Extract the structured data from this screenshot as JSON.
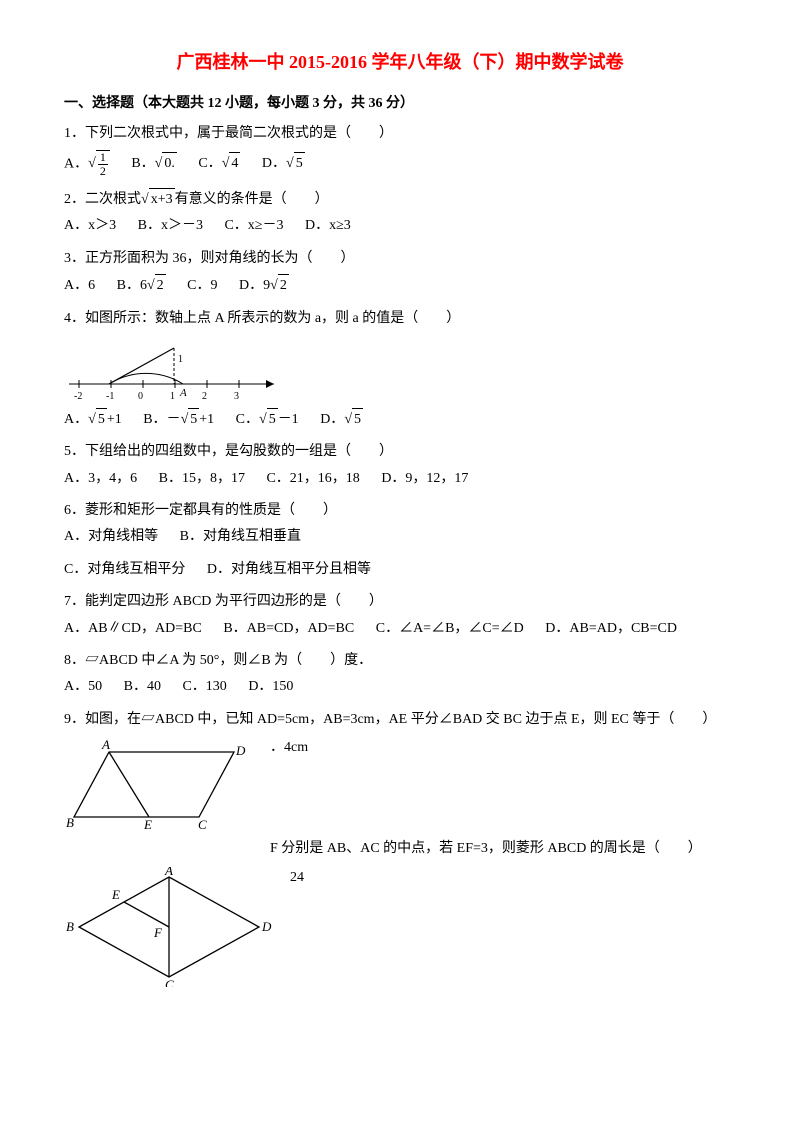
{
  "title": "广西桂林一中 2015-2016 学年八年级（下）期中数学试卷",
  "section1": "一、选择题（本大题共 12 小题，每小题 3 分，共 36 分）",
  "q1": {
    "text": "1．下列二次根式中，属于最简二次根式的是（　　）",
    "optA_prefix": "A．",
    "optA_frac_num": "1",
    "optA_frac_den": "2",
    "optB_prefix": "B．",
    "optB_body": "0.",
    "optC_prefix": "C．",
    "optC_body": "4",
    "optD_prefix": "D．",
    "optD_body": "5"
  },
  "q2": {
    "text_pre": "2．二次根式",
    "sqrt_body": "x+3",
    "text_post": "有意义的条件是（　　）",
    "optA": "A．x＞3",
    "optB": "B．x＞－3",
    "optC": "C．x≥－3",
    "optD": "D．x≥3"
  },
  "q3": {
    "text": "3．正方形面积为 36，则对角线的长为（　　）",
    "optA": "A．6",
    "optB_prefix": "B．",
    "optB_num": "6",
    "optB_body": "2",
    "optC": "C．9",
    "optD_prefix": "D．",
    "optD_num": "9",
    "optD_body": "2"
  },
  "q4": {
    "text": "4．如图所示：数轴上点 A 所表示的数为 a，则 a 的值是（　　）",
    "optA_prefix": "A．",
    "optA_body": "5",
    "optA_suffix": "+1",
    "optB_prefix": "B．－",
    "optB_body": "5",
    "optB_suffix": "+1",
    "optC_prefix": "C．",
    "optC_body": "5",
    "optC_suffix": "－1",
    "optD_prefix": "D．",
    "optD_body": "5",
    "axis_labels": [
      "-2",
      "-1",
      "0",
      "1",
      "2",
      "3"
    ],
    "axis_A": "A"
  },
  "q5": {
    "text": "5．下组给出的四组数中，是勾股数的一组是（　　）",
    "optA": "A．3，4，6",
    "optB": "B．15，8，17",
    "optC": "C．21，16，18",
    "optD": "D．9，12，17"
  },
  "q6": {
    "text": "6．菱形和矩形一定都具有的性质是（　　）",
    "optA": "A．对角线相等",
    "optB": "B．对角线互相垂直",
    "optC": "C．对角线互相平分",
    "optD": "D．对角线互相平分且相等"
  },
  "q7": {
    "text": "7．能判定四边形 ABCD 为平行四边形的是（　　）",
    "optA": "A．AB∥CD，AD=BC",
    "optB": "B．AB=CD，AD=BC",
    "optC": "C．∠A=∠B，∠C=∠D",
    "optD": "D．AB=AD，CB=CD"
  },
  "q8": {
    "text": "8．▱ABCD 中∠A 为 50°，则∠B 为（　　）度．",
    "optA": "A．50",
    "optB": "B．40",
    "optC": "C．130",
    "optD": "D．150"
  },
  "q9": {
    "text": "9．如图，在▱ABCD 中，已知 AD=5cm，AB=3cm，AE 平分∠BAD 交 BC 边于点 E，则 EC 等于（　　）",
    "optText": "．4cm",
    "labels": {
      "A": "A",
      "B": "B",
      "C": "C",
      "D": "D",
      "E": "E"
    }
  },
  "q10": {
    "text_part": "F 分别是 AB、AC 的中点，若 EF=3，则菱形 ABCD 的周长是（　　）",
    "optText": "24",
    "labels": {
      "A": "A",
      "B": "B",
      "C": "C",
      "D": "D",
      "E": "E",
      "F": "F"
    }
  },
  "colors": {
    "title": "#ff0000",
    "text": "#000000",
    "stroke": "#000000",
    "background": "#ffffff"
  }
}
